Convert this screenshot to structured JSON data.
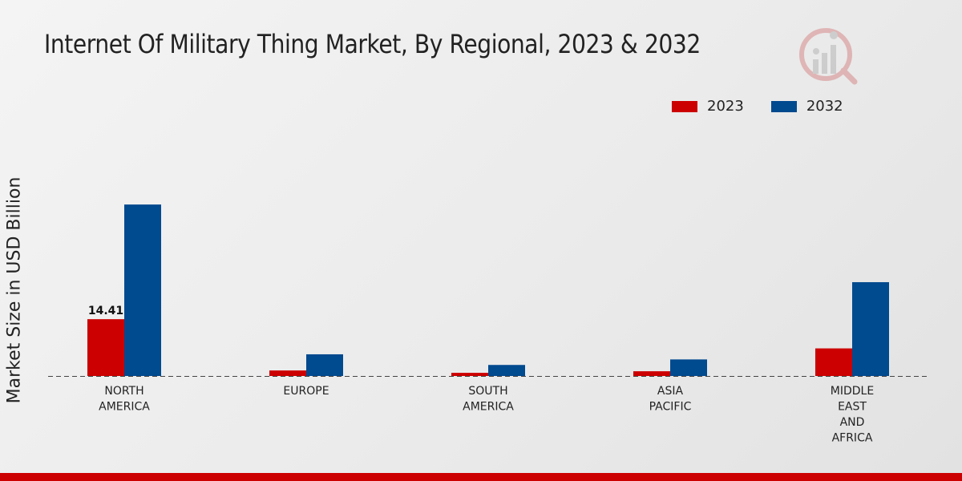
{
  "chart_data": {
    "type": "bar",
    "title": "Internet Of Military Thing Market, By Regional, 2023 & 2032",
    "xlabel": "",
    "ylabel": "Market Size in USD Billion",
    "categories": [
      [
        "NORTH",
        "AMERICA"
      ],
      [
        "EUROPE"
      ],
      [
        "SOUTH",
        "AMERICA"
      ],
      [
        "ASIA",
        "PACIFIC"
      ],
      [
        "MIDDLE",
        "EAST",
        "AND",
        "AFRICA"
      ]
    ],
    "series": [
      {
        "name": "2023",
        "color": "#cc0000",
        "values": [
          14.41,
          1.4,
          0.8,
          1.2,
          7.0
        ]
      },
      {
        "name": "2032",
        "color": "#004a8f",
        "values": [
          43.5,
          5.5,
          2.8,
          4.2,
          23.8
        ]
      }
    ],
    "data_labels": [
      {
        "series": 0,
        "index": 0,
        "text": "14.41"
      }
    ],
    "ylim": [
      0,
      60
    ],
    "grid": false,
    "legend_position": "top-right"
  }
}
